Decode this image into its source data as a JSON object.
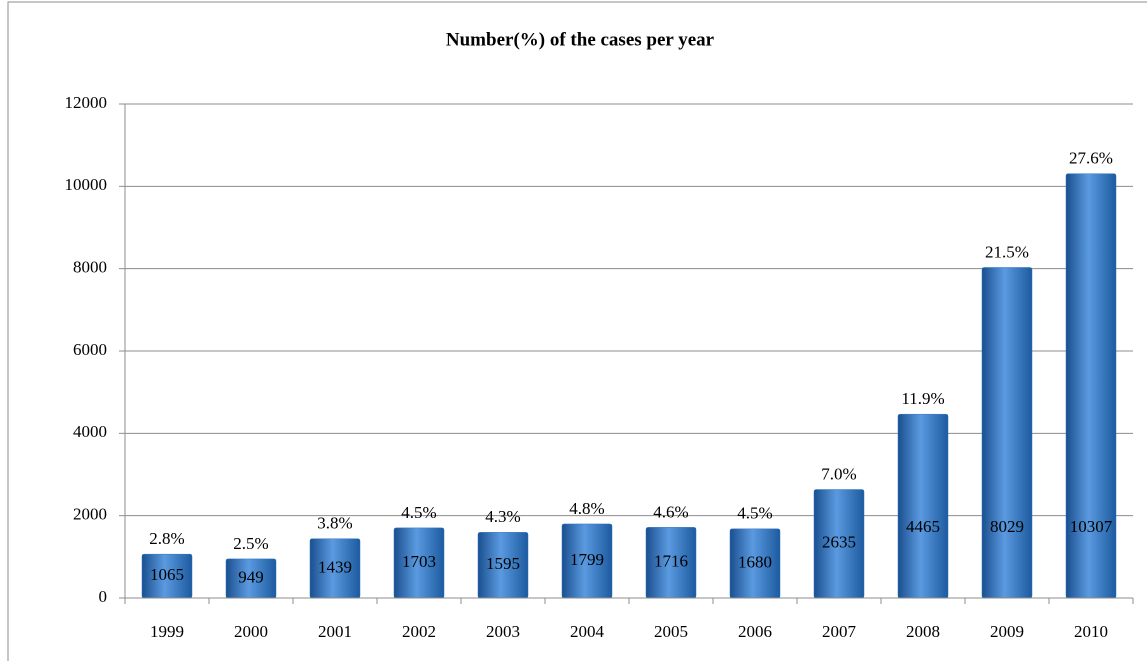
{
  "chart_data": {
    "type": "bar",
    "title": "Number(%) of the cases per year",
    "categories": [
      "1999",
      "2000",
      "2001",
      "2002",
      "2003",
      "2004",
      "2005",
      "2006",
      "2007",
      "2008",
      "2009",
      "2010"
    ],
    "values": [
      1065,
      949,
      1439,
      1703,
      1595,
      1799,
      1716,
      1680,
      2635,
      4465,
      8029,
      10307
    ],
    "percent_labels": [
      "2.8%",
      "2.5%",
      "3.8%",
      "4.5%",
      "4.3%",
      "4.8%",
      "4.6%",
      "4.5%",
      "7.0%",
      "11.9%",
      "21.5%",
      "27.6%"
    ],
    "color": "#2e75c4",
    "ylim": [
      0,
      12000
    ],
    "yticks": [
      0,
      2000,
      4000,
      6000,
      8000,
      10000,
      12000
    ],
    "grid": true
  }
}
